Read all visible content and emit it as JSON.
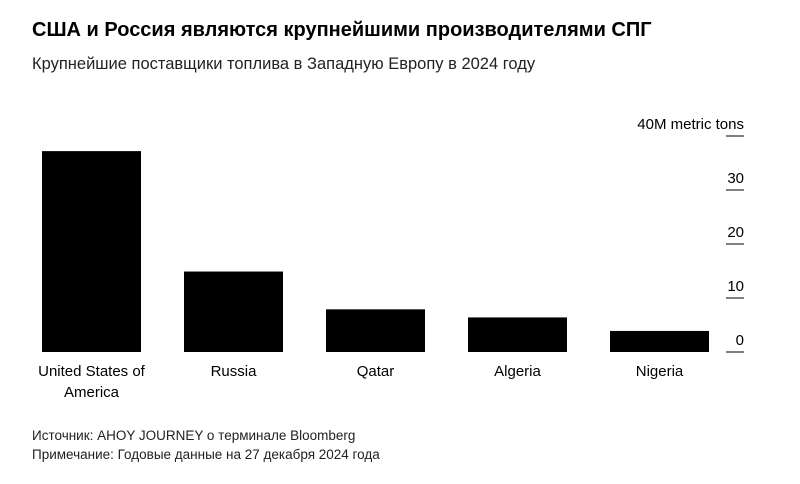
{
  "header": {
    "title": "США и Россия являются крупнейшими производителями СПГ",
    "subtitle": "Крупнейшие поставщики топлива в Западную Европу в 2024 году"
  },
  "chart_data": {
    "type": "bar",
    "title": "США и Россия являются крупнейшими производителями СПГ",
    "subtitle": "Крупнейшие поставщики топлива в Западную Европу в 2024 году",
    "categories": [
      "United States of America",
      "Russia",
      "Qatar",
      "Algeria",
      "Nigeria"
    ],
    "category_lines": [
      [
        "United States of",
        "America"
      ],
      [
        "Russia"
      ],
      [
        "Qatar"
      ],
      [
        "Algeria"
      ],
      [
        "Nigeria"
      ]
    ],
    "values": [
      37.2,
      14.9,
      7.9,
      6.4,
      3.9
    ],
    "ylim": [
      0,
      40
    ],
    "y_ticks": [
      0,
      10,
      20,
      30,
      40
    ],
    "y_tick_labels": [
      "0",
      "10",
      "20",
      "30",
      "40M metric tons"
    ],
    "y_axis_side": "right",
    "grid": false,
    "bar_color": "#000000"
  },
  "footer": {
    "source": "Источник: AHOY JOURNEY о терминале Bloomberg",
    "note": "Примечание: Годовые данные на 27 декабря 2024 года"
  }
}
